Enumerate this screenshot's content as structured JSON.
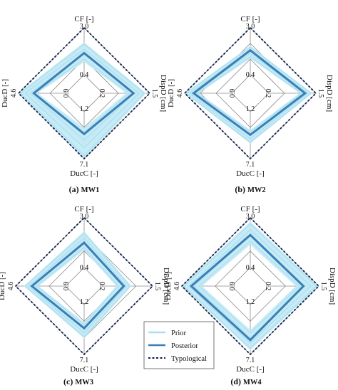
{
  "legend": {
    "prior": "Prior",
    "posterior": "Posterior",
    "typological": "Typological"
  },
  "colors": {
    "prior": "#a9dff0",
    "prior_band": "#c4eaf6",
    "posterior": "#3a7fb6",
    "typological": "#0e1f4d",
    "grid": "#8c8c8c"
  },
  "chart_data": [
    {
      "type": "radar",
      "caption_prefix": "(a)",
      "caption_name": "MW1",
      "axes": [
        {
          "key": "CF",
          "label": "CF [-]",
          "inner_tick": "0.4",
          "outer_tick": "3.0",
          "min": 0.4,
          "max": 3.0,
          "reversed": false
        },
        {
          "key": "DispD",
          "label": "DispD [cm]",
          "inner_tick": "0.2",
          "outer_tick": "1.5",
          "min": 0.2,
          "max": 1.5,
          "reversed": false
        },
        {
          "key": "DucC",
          "label": "DucC [-]",
          "inner_tick": "1.2",
          "outer_tick": "7.1",
          "min": 1.2,
          "max": 7.1,
          "reversed": false
        },
        {
          "key": "DucD",
          "label": "DucD [-]",
          "inner_tick": "0.9",
          "outer_tick": "4.6",
          "min": 0.9,
          "max": 4.6,
          "reversed": false
        }
      ],
      "posterior": [
        1.6,
        1.05,
        4.0,
        3.4
      ],
      "typological": [
        3.0,
        1.5,
        7.1,
        4.6
      ],
      "prior_band": {
        "low": [
          1.1,
          0.85,
          3.2,
          3.1
        ],
        "high": [
          2.2,
          1.4,
          7.1,
          4.6
        ]
      }
    },
    {
      "type": "radar",
      "caption_prefix": "(b)",
      "caption_name": "MW2",
      "axes": [
        {
          "key": "CF",
          "label": "CF [-]",
          "inner_tick": "0.4",
          "outer_tick": "3.0",
          "min": 0.4,
          "max": 3.0,
          "reversed": false
        },
        {
          "key": "DispD",
          "label": "DispD [cm]",
          "inner_tick": "0.2",
          "outer_tick": "1.5",
          "min": 0.2,
          "max": 1.5,
          "reversed": false
        },
        {
          "key": "DucC",
          "label": "DucC [-]",
          "inner_tick": "1.2",
          "outer_tick": "7.1",
          "min": 1.2,
          "max": 7.1,
          "reversed": false
        },
        {
          "key": "DucD",
          "label": "DucD [-]",
          "inner_tick": "0.9",
          "outer_tick": "4.6",
          "min": 0.9,
          "max": 4.6,
          "reversed": false
        }
      ],
      "posterior": [
        1.75,
        1.2,
        4.1,
        3.9
      ],
      "typological": [
        3.0,
        1.5,
        7.1,
        4.6
      ],
      "prior_band": {
        "low": [
          1.3,
          1.05,
          3.5,
          3.5
        ],
        "high": [
          2.0,
          1.4,
          5.2,
          4.6
        ]
      }
    },
    {
      "type": "radar",
      "caption_prefix": "(c)",
      "caption_name": "MW3",
      "axes": [
        {
          "key": "CF",
          "label": "CF [-]",
          "inner_tick": "0.4",
          "outer_tick": "3.0",
          "min": 0.4,
          "max": 3.0,
          "reversed": false
        },
        {
          "key": "DispD",
          "label": "DispD [cm]",
          "inner_tick": "0.2",
          "outer_tick": "1.5",
          "min": 0.2,
          "max": 1.5,
          "reversed": false
        },
        {
          "key": "DucC",
          "label": "DucC [-]",
          "inner_tick": "1.2",
          "outer_tick": "7.1",
          "min": 1.2,
          "max": 7.1,
          "reversed": false
        },
        {
          "key": "DucD",
          "label": "DucD [-]",
          "inner_tick": "0.9",
          "outer_tick": "4.6",
          "min": 0.9,
          "max": 4.6,
          "reversed": false
        }
      ],
      "posterior": [
        1.7,
        0.75,
        4.0,
        3.4
      ],
      "typological": [
        3.0,
        1.5,
        7.1,
        4.6
      ],
      "prior_band": {
        "low": [
          1.3,
          0.55,
          3.3,
          2.9
        ],
        "high": [
          2.3,
          0.95,
          5.2,
          4.0
        ]
      }
    },
    {
      "type": "radar",
      "caption_prefix": "(d)",
      "caption_name": "MW4",
      "axes": [
        {
          "key": "CF",
          "label": "CF [-]",
          "inner_tick": "0.4",
          "outer_tick": "3.0",
          "min": 0.4,
          "max": 3.0,
          "reversed": false
        },
        {
          "key": "DispD",
          "label": "DispD [cm]",
          "inner_tick": "0.2",
          "outer_tick": "1.5",
          "min": 0.2,
          "max": 1.5,
          "reversed": false
        },
        {
          "key": "DucC",
          "label": "DucC [-]",
          "inner_tick": "1.2",
          "outer_tick": "7.1",
          "min": 1.2,
          "max": 7.1,
          "reversed": false
        },
        {
          "key": "DucD",
          "label": "DucD [-]",
          "inner_tick": "0.9",
          "outer_tick": "4.6",
          "min": 0.9,
          "max": 4.6,
          "reversed": false
        }
      ],
      "posterior": [
        2.1,
        1.1,
        5.4,
        3.9
      ],
      "typological": [
        3.0,
        1.5,
        7.1,
        4.6
      ],
      "prior_band": {
        "low": [
          1.6,
          0.9,
          4.2,
          3.1
        ],
        "high": [
          2.8,
          1.5,
          6.6,
          4.6
        ]
      }
    }
  ]
}
